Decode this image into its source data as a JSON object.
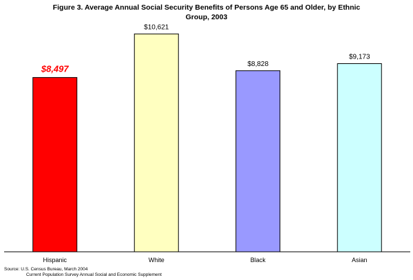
{
  "title_line1": "Figure 3. Average Annual Social Security Benefits of Persons Age 65 and Older, by Ethnic",
  "title_line2": "Group, 2003",
  "source_line1": "Source: U.S. Census Bureau, March 2004",
  "source_line2": "Current Population Survey Annual Social and Economic Supplement",
  "chart_data": {
    "type": "bar",
    "title": "Figure 3. Average Annual Social Security Benefits of Persons Age 65 and Older, by Ethnic Group, 2003",
    "categories": [
      "Hispanic",
      "White",
      "Black",
      "Asian"
    ],
    "values": [
      8497,
      10621,
      8828,
      9173
    ],
    "value_labels": [
      "$8,497",
      "$10,621",
      "$8,828",
      "$9,173"
    ],
    "bar_colors": [
      "#ff0000",
      "#ffffc0",
      "#9999ff",
      "#ccffff"
    ],
    "highlight_label_color": "#ff0000",
    "highlighted_category": "Hispanic",
    "xlabel": "",
    "ylabel": "",
    "ylim": [
      0,
      11000
    ],
    "grid": false,
    "legend": "none"
  }
}
